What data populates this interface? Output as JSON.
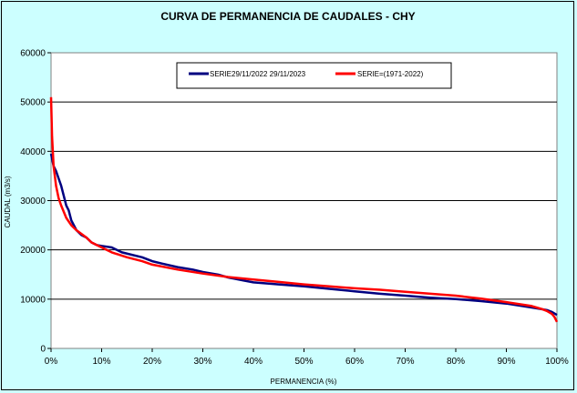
{
  "chart_data": {
    "type": "line",
    "title": "CURVA DE PERMANENCIA DE CAUDALES - CHY",
    "xlabel": "PERMANENCIA (%)",
    "ylabel": "CAUDAL (m3/s)",
    "xlim": [
      0,
      100
    ],
    "ylim": [
      0,
      60000
    ],
    "x_ticks": [
      "0%",
      "10%",
      "20%",
      "30%",
      "40%",
      "50%",
      "60%",
      "70%",
      "80%",
      "90%",
      "100%"
    ],
    "y_ticks": [
      "0",
      "10000",
      "20000",
      "30000",
      "40000",
      "50000",
      "60000"
    ],
    "grid": "horizontal",
    "legend_position": "top-center",
    "series": [
      {
        "name": "SERIE29/11/2022 29/11/2023",
        "color": "#000080",
        "x": [
          0,
          0.5,
          1,
          1.5,
          2,
          2.5,
          3,
          3.5,
          4,
          5,
          6,
          7,
          8,
          9,
          10,
          12,
          14,
          16,
          18,
          20,
          22,
          25,
          28,
          30,
          33,
          35,
          38,
          40,
          45,
          50,
          55,
          60,
          65,
          70,
          75,
          80,
          85,
          90,
          95,
          98,
          99,
          100
        ],
        "values": [
          39500,
          37000,
          36000,
          34500,
          33000,
          31000,
          29000,
          28000,
          26000,
          24000,
          23000,
          22500,
          21500,
          21000,
          20800,
          20500,
          19500,
          19000,
          18500,
          17700,
          17200,
          16500,
          16000,
          15500,
          15000,
          14400,
          13800,
          13400,
          13000,
          12600,
          12100,
          11600,
          11100,
          10700,
          10300,
          10000,
          9600,
          9100,
          8300,
          7800,
          7400,
          6800
        ]
      },
      {
        "name": "SERIE=(1971-2022)",
        "color": "#ff0000",
        "x": [
          0,
          0.2,
          0.5,
          1,
          1.5,
          2,
          3,
          4,
          5,
          7,
          8,
          10,
          12,
          15,
          18,
          20,
          25,
          30,
          35,
          40,
          45,
          50,
          55,
          60,
          65,
          70,
          75,
          80,
          85,
          90,
          95,
          97,
          98,
          99,
          99.5,
          100
        ],
        "values": [
          51000,
          43000,
          37000,
          33000,
          30500,
          29000,
          26500,
          25000,
          24000,
          22500,
          21500,
          20500,
          19500,
          18500,
          17700,
          17000,
          16000,
          15200,
          14500,
          14000,
          13500,
          13000,
          12600,
          12200,
          11900,
          11500,
          11100,
          10700,
          10100,
          9400,
          8600,
          8000,
          7600,
          7000,
          6400,
          5400
        ]
      }
    ]
  }
}
